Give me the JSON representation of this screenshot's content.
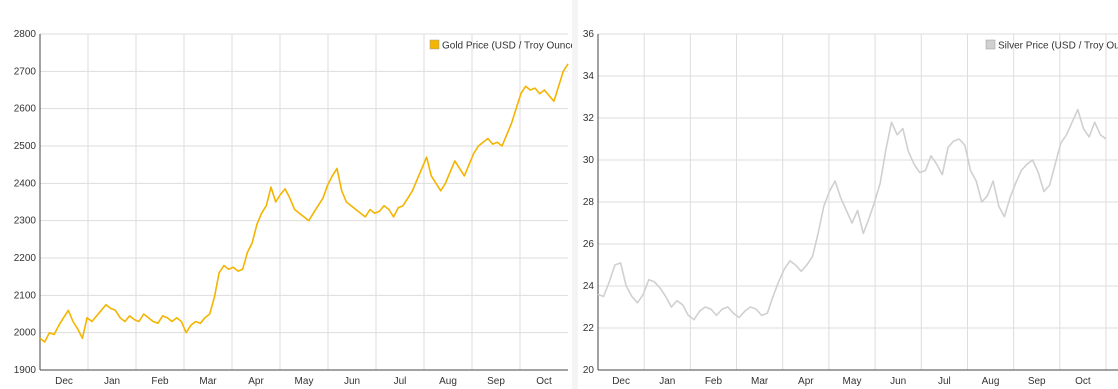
{
  "charts": [
    {
      "id": "gold",
      "chart_data": {
        "type": "line",
        "months": [
          "Dec",
          "Jan",
          "Feb",
          "Mar",
          "Apr",
          "May",
          "Jun",
          "Jul",
          "Aug",
          "Sep",
          "Oct"
        ],
        "yticks": [
          1900,
          2000,
          2100,
          2200,
          2300,
          2400,
          2500,
          2600,
          2700,
          2800
        ],
        "ylim": [
          1900,
          2800
        ],
        "grid": true,
        "legend_position": "top-right",
        "series": [
          {
            "name": "Gold Price (USD / Troy Ounce)",
            "color": "#f4b400",
            "values": [
              1985,
              1975,
              2000,
              1995,
              2020,
              2040,
              2060,
              2030,
              2010,
              1985,
              2040,
              2030,
              2045,
              2060,
              2075,
              2065,
              2060,
              2040,
              2030,
              2045,
              2035,
              2030,
              2050,
              2040,
              2030,
              2025,
              2045,
              2040,
              2030,
              2040,
              2030,
              2000,
              2020,
              2030,
              2025,
              2040,
              2050,
              2095,
              2160,
              2180,
              2170,
              2175,
              2165,
              2170,
              2215,
              2240,
              2290,
              2320,
              2340,
              2390,
              2350,
              2370,
              2385,
              2360,
              2330,
              2320,
              2310,
              2300,
              2320,
              2340,
              2360,
              2395,
              2420,
              2440,
              2380,
              2350,
              2340,
              2330,
              2320,
              2310,
              2330,
              2320,
              2325,
              2340,
              2330,
              2310,
              2335,
              2340,
              2360,
              2380,
              2410,
              2440,
              2470,
              2420,
              2400,
              2380,
              2400,
              2430,
              2460,
              2440,
              2420,
              2450,
              2480,
              2500,
              2510,
              2520,
              2505,
              2510,
              2500,
              2530,
              2560,
              2600,
              2640,
              2660,
              2650,
              2655,
              2640,
              2650,
              2635,
              2620,
              2660,
              2700,
              2720
            ]
          }
        ]
      }
    },
    {
      "id": "silver",
      "chart_data": {
        "type": "line",
        "months": [
          "Dec",
          "Jan",
          "Feb",
          "Mar",
          "Apr",
          "May",
          "Jun",
          "Jul",
          "Aug",
          "Sep",
          "Oct"
        ],
        "yticks": [
          20,
          22,
          24,
          26,
          28,
          30,
          32,
          34,
          36
        ],
        "ylim": [
          20,
          36
        ],
        "grid": true,
        "legend_position": "top-right",
        "series": [
          {
            "name": "Silver Price (USD / Troy Ounce",
            "color": "#d0d0d0",
            "values": [
              23.6,
              23.5,
              24.2,
              25.0,
              25.1,
              24.0,
              23.5,
              23.2,
              23.6,
              24.3,
              24.2,
              23.9,
              23.5,
              23.0,
              23.3,
              23.1,
              22.6,
              22.4,
              22.8,
              23.0,
              22.9,
              22.6,
              22.9,
              23.0,
              22.7,
              22.5,
              22.8,
              23.0,
              22.9,
              22.6,
              22.7,
              23.5,
              24.2,
              24.8,
              25.2,
              25.0,
              24.7,
              25.0,
              25.4,
              26.5,
              27.8,
              28.5,
              29.0,
              28.2,
              27.6,
              27.0,
              27.6,
              26.5,
              27.2,
              28.0,
              28.9,
              30.5,
              31.8,
              31.2,
              31.5,
              30.4,
              29.8,
              29.4,
              29.5,
              30.2,
              29.8,
              29.3,
              30.6,
              30.9,
              31.0,
              30.7,
              29.5,
              29.0,
              28.0,
              28.3,
              29.0,
              27.8,
              27.3,
              28.2,
              28.9,
              29.5,
              29.8,
              30.0,
              29.4,
              28.5,
              28.8,
              29.8,
              30.8,
              31.2,
              31.8,
              32.4,
              31.5,
              31.1,
              31.8,
              31.2,
              31.0
            ]
          }
        ]
      }
    }
  ]
}
